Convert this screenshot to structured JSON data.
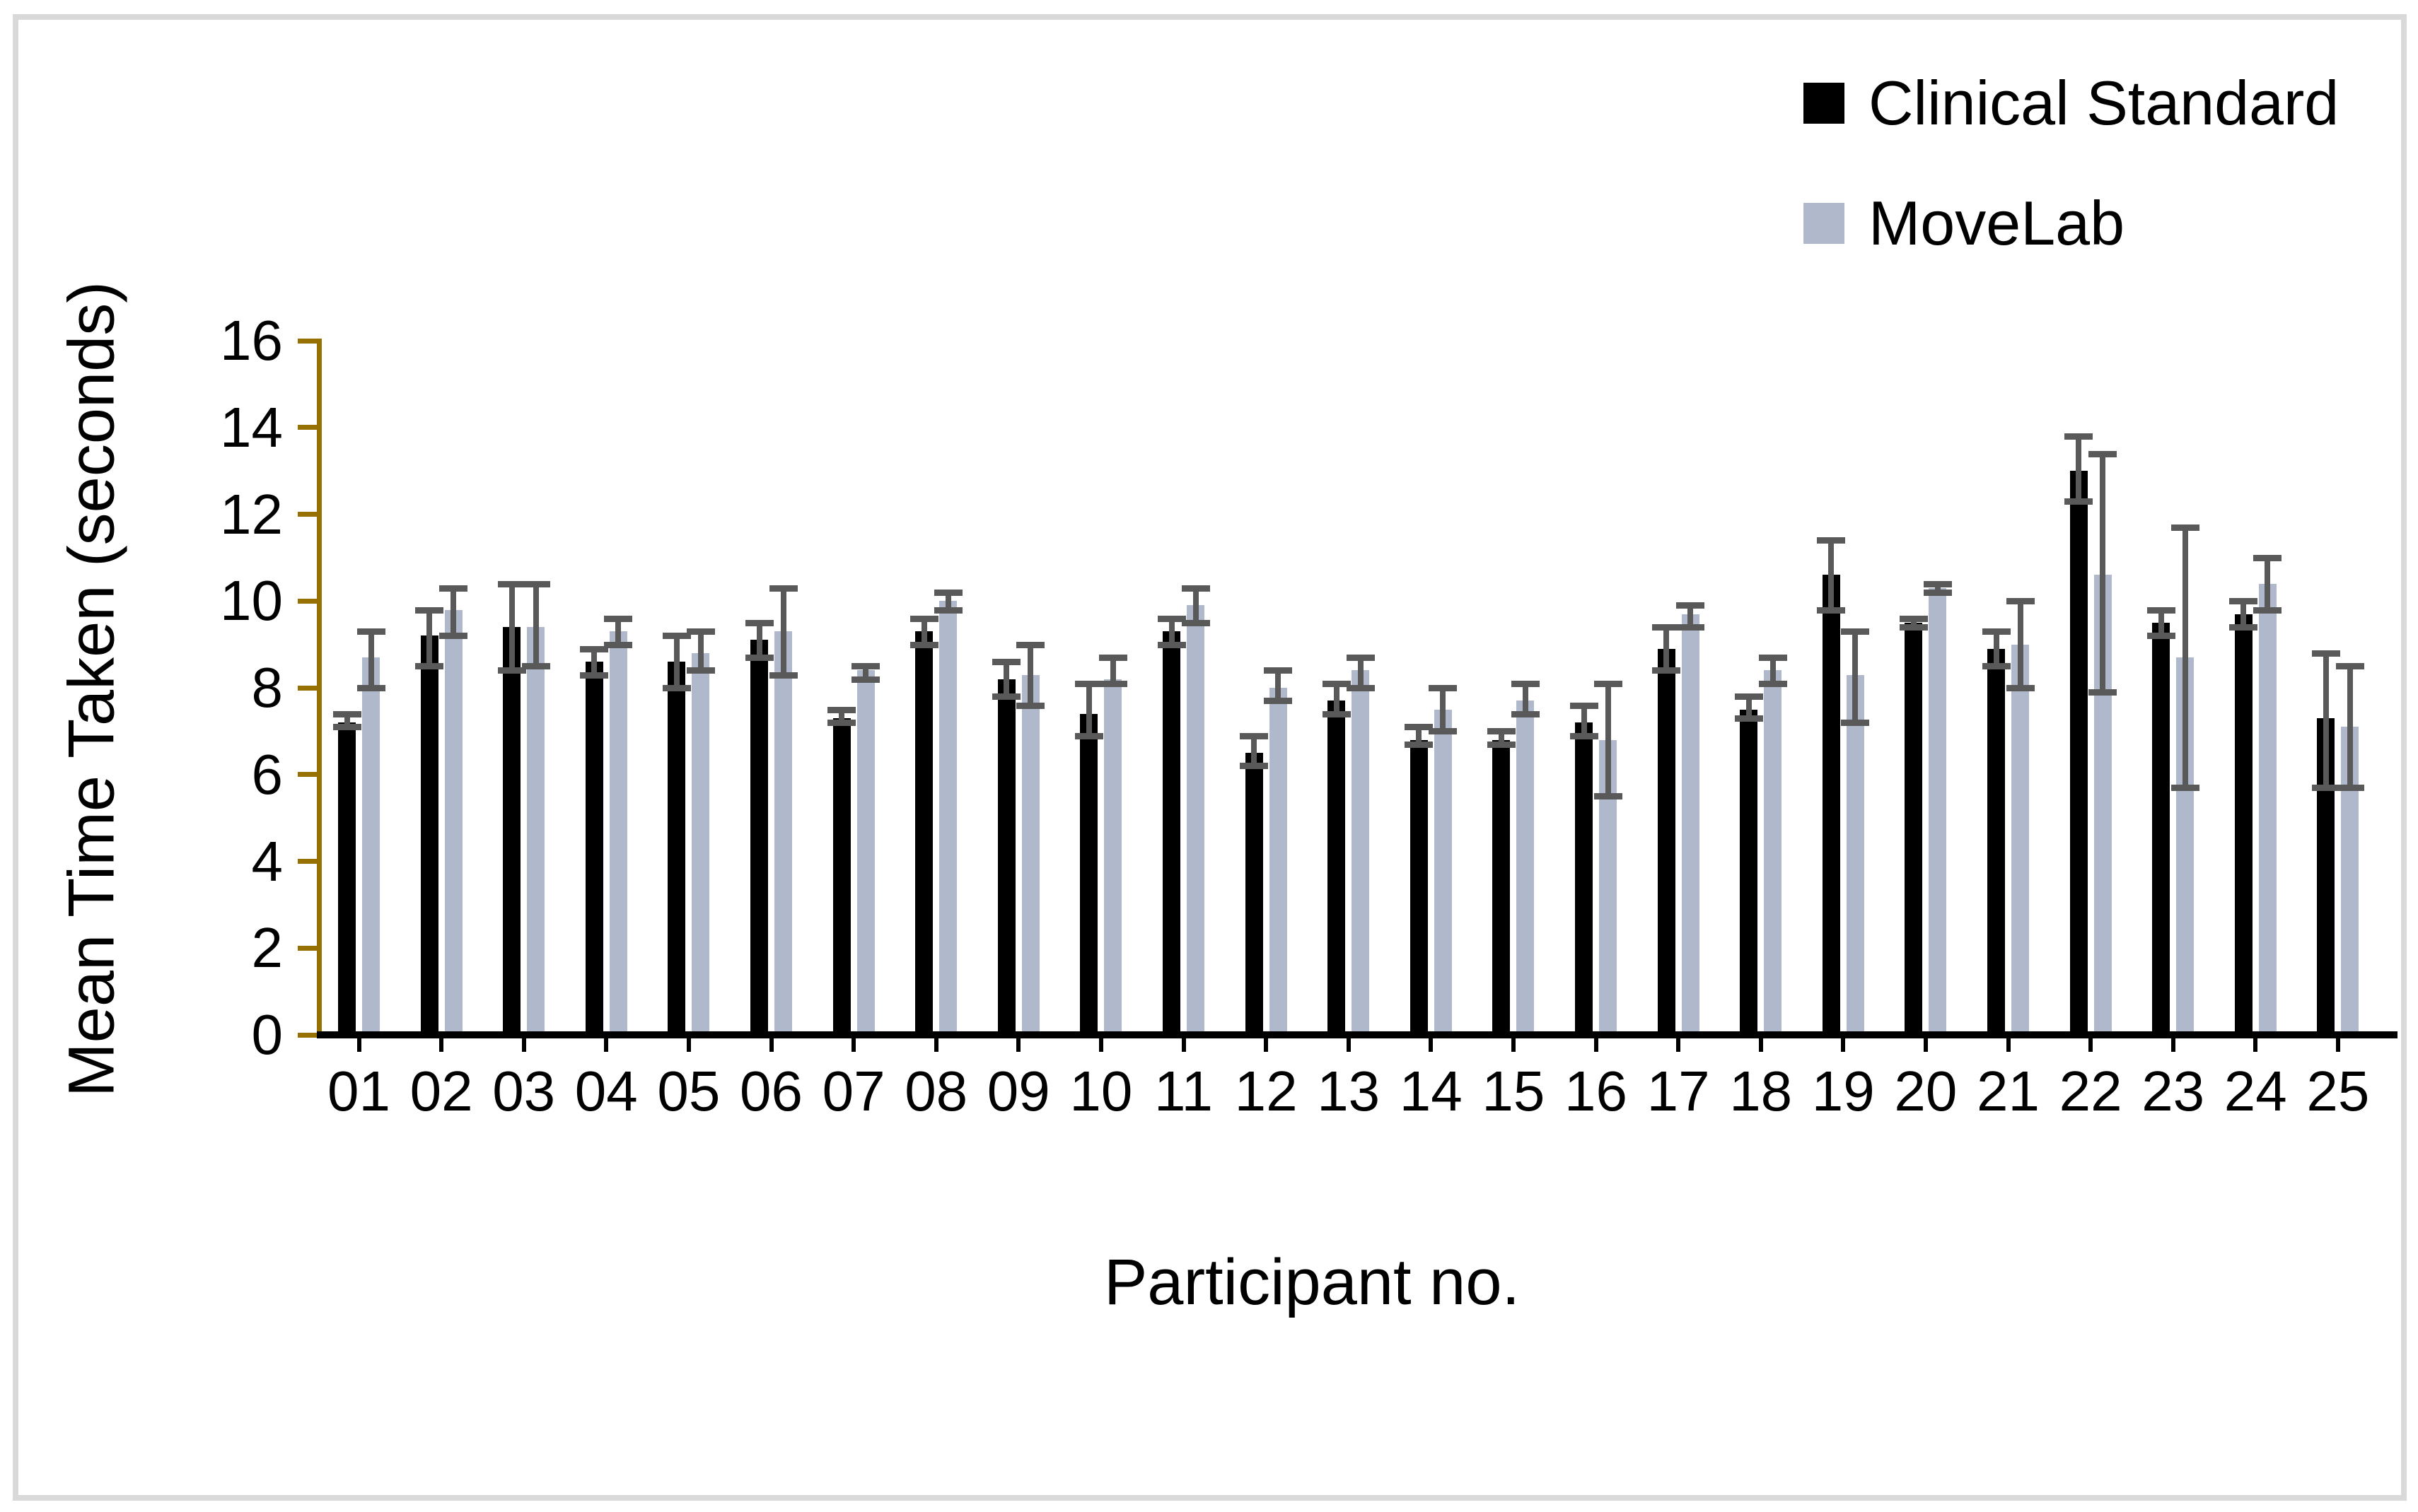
{
  "chart_data": {
    "type": "bar",
    "title": "",
    "xlabel": "Participant no.",
    "ylabel": "Mean Time Taken (seconds)",
    "ylim": [
      0,
      16
    ],
    "ytick_step": 2,
    "ytick_labels": [
      "0",
      "2",
      "4",
      "6",
      "8",
      "10",
      "12",
      "14",
      "16"
    ],
    "grid": "off",
    "legend_position": "top-right",
    "error_bars": "asymmetric, dark gray caps",
    "categories": [
      "01",
      "02",
      "03",
      "04",
      "05",
      "06",
      "07",
      "08",
      "09",
      "10",
      "11",
      "12",
      "13",
      "14",
      "15",
      "16",
      "17",
      "18",
      "19",
      "20",
      "21",
      "22",
      "23",
      "24",
      "25"
    ],
    "series": [
      {
        "name": "Clinical Standard",
        "color": "#000000",
        "values": [
          7.2,
          9.2,
          9.4,
          8.6,
          8.6,
          9.1,
          7.3,
          9.3,
          8.2,
          7.4,
          9.3,
          6.5,
          7.7,
          6.8,
          6.8,
          7.2,
          8.9,
          7.5,
          10.6,
          9.5,
          8.9,
          13.0,
          9.5,
          9.7,
          7.3
        ],
        "err_low": [
          7.1,
          8.5,
          8.4,
          8.3,
          8.0,
          8.7,
          7.2,
          9.0,
          7.8,
          6.9,
          9.0,
          6.2,
          7.4,
          6.7,
          6.7,
          6.9,
          8.4,
          7.3,
          9.8,
          9.4,
          8.5,
          12.3,
          9.2,
          9.4,
          5.7
        ],
        "err_high": [
          7.4,
          9.8,
          10.4,
          8.9,
          9.2,
          9.5,
          7.5,
          9.6,
          8.6,
          8.1,
          9.6,
          6.9,
          8.1,
          7.1,
          7.0,
          7.6,
          9.4,
          7.8,
          11.4,
          9.6,
          9.3,
          13.8,
          9.8,
          10.0,
          8.8
        ]
      },
      {
        "name": "MoveLab",
        "color": "#afb9cb",
        "values": [
          8.7,
          9.8,
          9.4,
          9.3,
          8.8,
          9.3,
          8.4,
          10.0,
          8.3,
          8.2,
          9.9,
          8.0,
          8.4,
          7.5,
          7.7,
          6.8,
          9.7,
          8.4,
          8.3,
          10.3,
          9.0,
          10.6,
          8.7,
          10.4,
          7.1
        ],
        "err_low": [
          8.0,
          9.2,
          8.5,
          9.0,
          8.4,
          8.3,
          8.2,
          9.8,
          7.6,
          8.1,
          9.5,
          7.7,
          8.0,
          7.0,
          7.4,
          5.5,
          9.4,
          8.1,
          7.2,
          10.2,
          8.0,
          7.9,
          5.7,
          9.8,
          5.7
        ],
        "err_high": [
          9.3,
          10.3,
          10.4,
          9.6,
          9.3,
          10.3,
          8.5,
          10.2,
          9.0,
          8.7,
          10.3,
          8.4,
          8.7,
          8.0,
          8.1,
          8.1,
          9.9,
          8.7,
          9.3,
          10.4,
          10.0,
          13.4,
          11.7,
          11.0,
          8.5
        ]
      }
    ],
    "colors": {
      "y_axis": "#967102",
      "x_axis": "#000000",
      "error_bar": "#595959",
      "figure_border": "#d9d9d9",
      "background": "#ffffff"
    }
  }
}
